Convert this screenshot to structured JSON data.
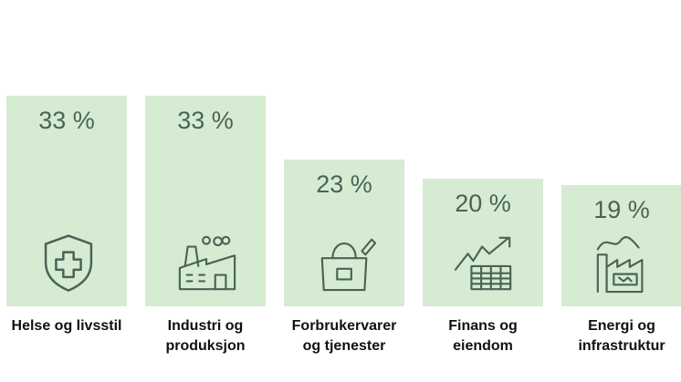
{
  "chart_data": {
    "type": "bar",
    "unit": "%",
    "categories": [
      [
        "Helse og livsstil"
      ],
      [
        "Industri og",
        "produksjon"
      ],
      [
        "Forbrukervarer",
        "og tjenester"
      ],
      [
        "Finans og",
        "eiendom"
      ],
      [
        "Energi og",
        "infrastruktur"
      ]
    ],
    "values": [
      33,
      33,
      23,
      20,
      19
    ],
    "value_labels": [
      "33 %",
      "33 %",
      "23 %",
      "20 %",
      "19 %"
    ],
    "icons": [
      "shield-cross-icon",
      "factory-icon",
      "shopping-bag-icon",
      "growth-chart-table-icon",
      "power-plant-battery-icon"
    ],
    "bar_color": "#d6ecd2",
    "icon_color": "#4a6356",
    "grid": false,
    "legend": "none"
  }
}
